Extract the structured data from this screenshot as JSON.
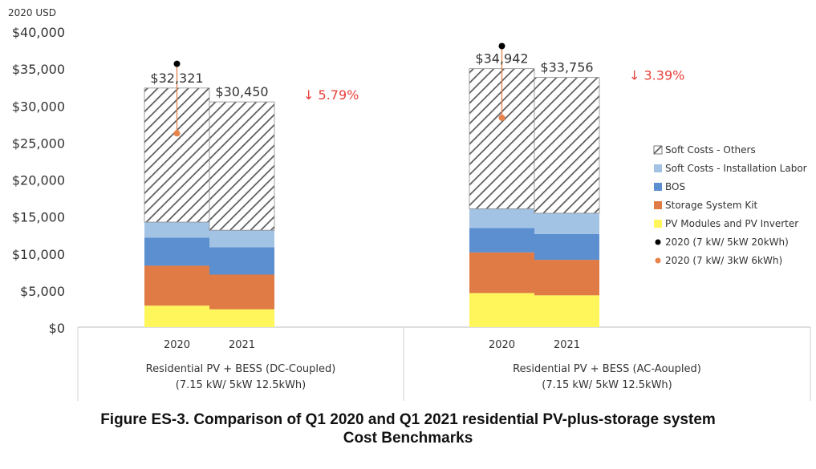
{
  "chart_data": {
    "type": "bar",
    "stacked": true,
    "y_unit_label": "2020 USD",
    "ylim": [
      0,
      40000
    ],
    "y_ticks": [
      0,
      5000,
      10000,
      15000,
      20000,
      25000,
      30000,
      35000,
      40000
    ],
    "y_tick_labels": [
      "$0",
      "$5,000",
      "$10,000",
      "$15,000",
      "$20,000",
      "$25,000",
      "$30,000",
      "$35,000",
      "$40,000"
    ],
    "groups": [
      {
        "label_line1": "Residential PV + BESS (DC-Coupled)",
        "label_line2": "(7.15 kW/ 5kW 12.5kWh)",
        "change_label": "↓ 5.79%",
        "bars": [
          {
            "category": "2020",
            "total_label": "$32,321",
            "values": [
              2900,
              5400,
              3800,
              2100,
              18121
            ],
            "marker_2020_20kwh": 35600,
            "marker_2020_6kwh": 26200
          },
          {
            "category": "2021",
            "total_label": "$30,450",
            "values": [
              2400,
              4700,
              3700,
              2300,
              17350
            ]
          }
        ]
      },
      {
        "label_line1": "Residential PV + BESS (AC-Aoupled)",
        "label_line2": "(7.15 kW/ 5kW 12.5kWh)",
        "change_label": "↓ 3.39%",
        "bars": [
          {
            "category": "2020",
            "total_label": "$34,942",
            "values": [
              4600,
              5500,
              3300,
              2600,
              18942
            ],
            "marker_2020_20kwh": 38000,
            "marker_2020_6kwh": 28300
          },
          {
            "category": "2021",
            "total_label": "$33,756",
            "values": [
              4300,
              4800,
              3500,
              2800,
              18356
            ]
          }
        ]
      }
    ],
    "series": [
      {
        "name": "PV Modules and PV Inverter",
        "color": "#fef65b"
      },
      {
        "name": "Storage System Kit",
        "color": "#e07b45"
      },
      {
        "name": "BOS",
        "color": "#5b8fd0"
      },
      {
        "name": "Soft Costs - Installation Labor",
        "color": "#a3c3e5"
      },
      {
        "name": "Soft Costs - Others",
        "color": "#ffffff",
        "pattern": "diagonal-hatch"
      }
    ],
    "markers": [
      {
        "name": "2020 (7 kW/ 5kW 20kWh)",
        "color": "#000000",
        "key": "marker_2020_20kwh"
      },
      {
        "name": "2020 (7 kW/ 3kW 6kWh)",
        "color": "#e8834c",
        "key": "marker_2020_6kwh"
      }
    ],
    "legend_order": [
      "Soft Costs - Others",
      "Soft Costs - Installation Labor",
      "BOS",
      "Storage System Kit",
      "PV Modules and PV Inverter",
      "2020 (7 kW/ 5kW 20kWh)",
      "2020 (7 kW/ 3kW 6kWh)"
    ],
    "legend_position": "right",
    "change_color": "#e8403a"
  },
  "caption": {
    "line1": "Figure ES-3. Comparison of Q1 2020 and Q1 2021 residential PV-plus-storage system",
    "line2": "Cost Benchmarks"
  }
}
